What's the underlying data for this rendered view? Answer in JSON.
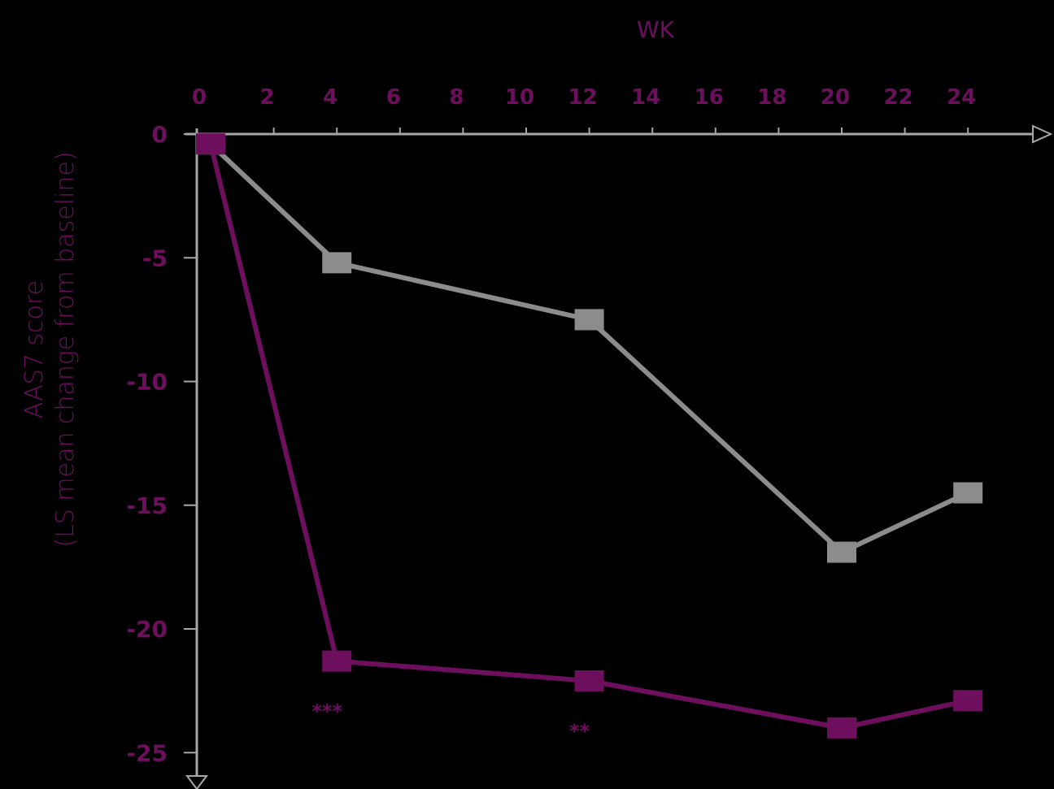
{
  "chart_data": {
    "type": "line",
    "title": "",
    "xlabel": "WK",
    "ylabel_line1": "AAS7  score",
    "ylabel_line2": "(LS mean change from baseline)",
    "x_ticks": [
      0,
      2,
      4,
      6,
      8,
      10,
      12,
      14,
      16,
      18,
      20,
      22,
      24
    ],
    "y_ticks": [
      0,
      -5,
      -10,
      -15,
      -20,
      -25
    ],
    "xlim": [
      0,
      24
    ],
    "ylim": [
      -25,
      0
    ],
    "grid": false,
    "legend": null,
    "x": [
      0,
      4,
      12,
      20,
      24
    ],
    "series": [
      {
        "name": "Gray series (comparator)",
        "color": "#8c8c8c",
        "marker": "square",
        "values": [
          -0.4,
          -5.2,
          -7.5,
          -16.9,
          -14.5
        ]
      },
      {
        "name": "Purple series (treatment)",
        "color": "#6e0f5e",
        "marker": "square",
        "values": [
          -0.4,
          -21.3,
          -22.1,
          -24.0,
          -22.9
        ]
      }
    ],
    "annotations": [
      {
        "x": 4,
        "series": "Purple series (treatment)",
        "text": "***"
      },
      {
        "x": 12,
        "series": "Purple series (treatment)",
        "text": "**"
      }
    ]
  },
  "colors": {
    "background": "#000000",
    "axis": "#a6a6a6",
    "accent": "#6e0f5e"
  }
}
